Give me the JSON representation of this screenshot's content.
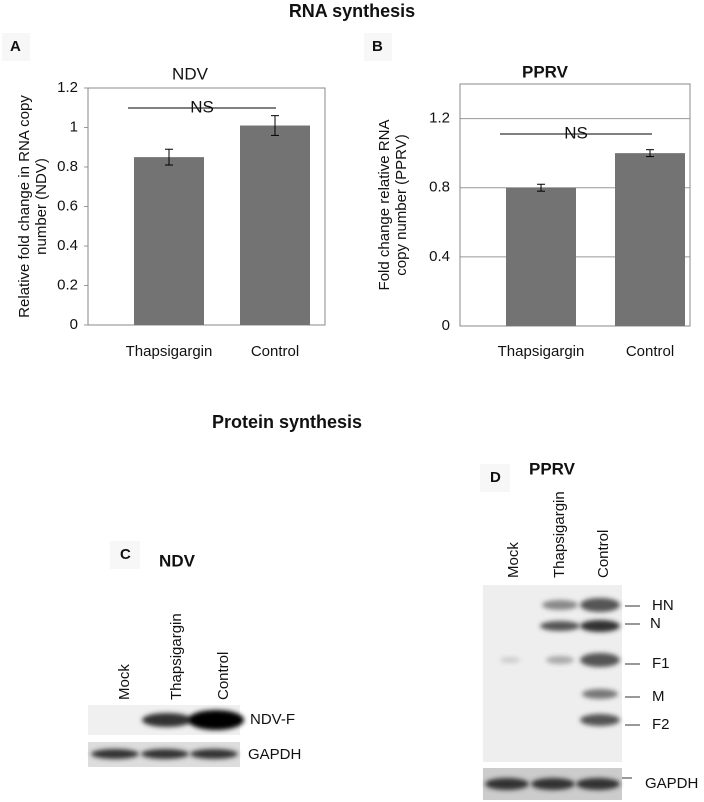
{
  "title": "RNA synthesis",
  "chart_data": [
    {
      "type": "bar",
      "panel": "A",
      "title": "NDV",
      "ylabel": [
        "Relative fold change in RNA copy",
        "number (NDV)"
      ],
      "categories": [
        "Thapsigargin",
        "Control"
      ],
      "values": [
        0.85,
        1.01
      ],
      "errors": [
        0.04,
        0.05
      ],
      "color": "#737373",
      "ylim": [
        0,
        1.2
      ],
      "yticks": [
        0,
        0.2,
        0.4,
        0.6,
        0.8,
        1,
        1.2
      ],
      "grid": false,
      "annotation": "NS"
    },
    {
      "type": "bar",
      "panel": "B",
      "title": "PPRV",
      "ylabel": [
        "Fold change relative RNA",
        "copy number (PPRV)"
      ],
      "categories": [
        "Thapsigargin",
        "Control"
      ],
      "values": [
        0.8,
        1.0
      ],
      "errors": [
        0.02,
        0.02
      ],
      "color": "#737373",
      "ylim": [
        0,
        1.4
      ],
      "yticks": [
        0,
        0.4,
        0.8,
        1.2
      ],
      "grid": true,
      "annotation": "NS"
    }
  ],
  "protein_title": "Protein synthesis",
  "blots": [
    {
      "panel": "C",
      "title": "NDV",
      "lanes": [
        "Mock",
        "Thapsigargin",
        "Control"
      ],
      "bands": [
        "NDV-F",
        "GAPDH"
      ]
    },
    {
      "panel": "D",
      "title": "PPRV",
      "lanes": [
        "Mock",
        "Thapsigargin",
        "Control"
      ],
      "bands": [
        "HN",
        "N",
        "F1",
        "M",
        "F2",
        "GAPDH"
      ]
    }
  ]
}
